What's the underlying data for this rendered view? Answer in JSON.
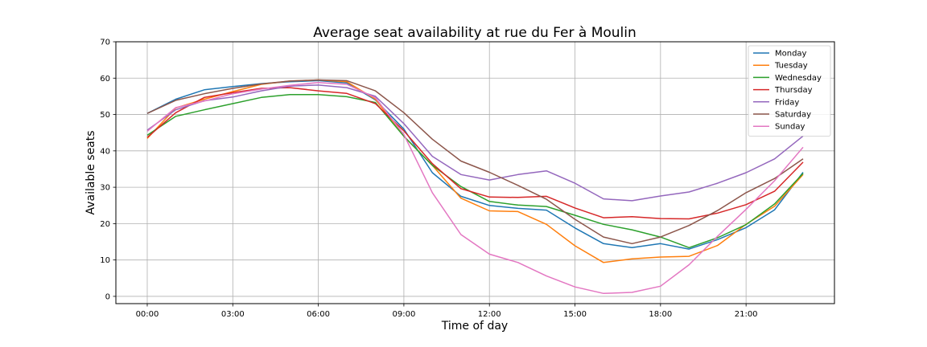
{
  "chart_data": {
    "type": "line",
    "title": "Average seat availability at rue du Fer à Moulin",
    "xlabel": "Time of day",
    "ylabel": "Available seats",
    "xlim": [
      -1.1,
      24.1
    ],
    "ylim": [
      -2,
      70
    ],
    "grid": true,
    "legend_position": "top-right",
    "x_ticks": [
      {
        "value": 0,
        "label": "00:00"
      },
      {
        "value": 3,
        "label": "03:00"
      },
      {
        "value": 6,
        "label": "06:00"
      },
      {
        "value": 9,
        "label": "09:00"
      },
      {
        "value": 12,
        "label": "12:00"
      },
      {
        "value": 15,
        "label": "15:00"
      },
      {
        "value": 18,
        "label": "18:00"
      },
      {
        "value": 21,
        "label": "21:00"
      }
    ],
    "y_ticks": [
      0,
      10,
      20,
      30,
      40,
      50,
      60,
      70
    ],
    "x": [
      0,
      1,
      2,
      3,
      4,
      5,
      6,
      7,
      8,
      9,
      10,
      11,
      12,
      13,
      14,
      15,
      16,
      17,
      18,
      19,
      20,
      21,
      22,
      23
    ],
    "series": [
      {
        "name": "Monday",
        "color": "#1f77b4",
        "values": [
          50.3,
          54.2,
          56.8,
          57.7,
          58.5,
          59.0,
          59.3,
          58.7,
          54.0,
          46.0,
          34.0,
          27.5,
          25.0,
          24.2,
          23.7,
          18.8,
          14.5,
          13.4,
          14.5,
          13.0,
          15.6,
          18.9,
          23.8,
          34.1
        ]
      },
      {
        "name": "Tuesday",
        "color": "#ff7f0e",
        "values": [
          43.4,
          51.8,
          54.2,
          56.3,
          58.3,
          59.2,
          59.5,
          59.0,
          54.2,
          44.0,
          36.0,
          27.0,
          23.5,
          23.3,
          19.8,
          13.9,
          9.3,
          10.3,
          10.8,
          11.0,
          14.0,
          19.8,
          24.8,
          33.5
        ]
      },
      {
        "name": "Wednesday",
        "color": "#2ca02c",
        "values": [
          44.3,
          49.5,
          51.3,
          53.0,
          54.7,
          55.5,
          55.5,
          54.9,
          53.3,
          44.0,
          36.0,
          30.2,
          26.1,
          25.1,
          24.7,
          22.3,
          19.8,
          18.3,
          16.3,
          13.4,
          16.1,
          19.7,
          25.4,
          33.8
        ]
      },
      {
        "name": "Thursday",
        "color": "#d62728",
        "values": [
          43.7,
          50.5,
          54.7,
          56.0,
          57.2,
          57.4,
          56.5,
          55.8,
          53.0,
          45.5,
          36.5,
          29.6,
          27.3,
          27.2,
          27.5,
          24.3,
          21.6,
          21.9,
          21.4,
          21.3,
          22.9,
          25.2,
          28.9,
          36.9
        ]
      },
      {
        "name": "Friday",
        "color": "#9467bd",
        "values": [
          45.7,
          51.3,
          53.8,
          54.8,
          56.5,
          57.8,
          58.1,
          57.4,
          55.0,
          47.5,
          38.5,
          33.5,
          32.0,
          33.5,
          34.5,
          31.1,
          26.8,
          26.3,
          27.6,
          28.7,
          31.1,
          34.0,
          37.8,
          44.1
        ]
      },
      {
        "name": "Saturday",
        "color": "#8c564b",
        "values": [
          50.3,
          53.9,
          55.7,
          57.2,
          58.4,
          59.2,
          59.5,
          59.3,
          56.5,
          50.5,
          43.2,
          37.2,
          34.1,
          30.5,
          26.7,
          21.2,
          16.3,
          14.5,
          16.3,
          19.5,
          23.6,
          28.5,
          32.4,
          37.8
        ]
      },
      {
        "name": "Sunday",
        "color": "#e377c2",
        "values": [
          45.4,
          51.9,
          53.7,
          55.7,
          57.0,
          58.0,
          58.8,
          58.3,
          54.6,
          44.5,
          28.5,
          17.0,
          11.6,
          9.3,
          5.6,
          2.6,
          0.8,
          1.1,
          2.8,
          8.7,
          16.5,
          23.9,
          31.8,
          41.0
        ]
      }
    ]
  }
}
